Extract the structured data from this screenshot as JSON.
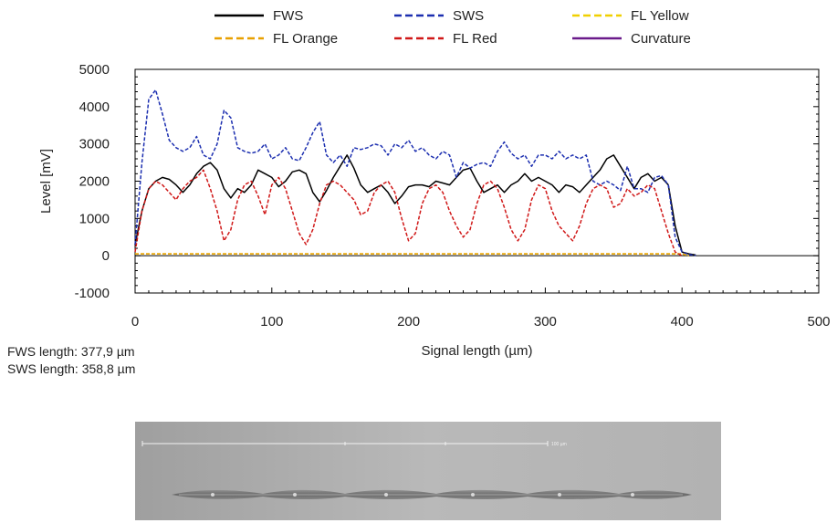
{
  "chart_data": {
    "type": "line",
    "xlabel": "Signal length (µm)",
    "ylabel": "Level [mV]",
    "xlim": [
      0,
      500
    ],
    "ylim": [
      -1000,
      5000
    ],
    "xticks": [
      0,
      100,
      200,
      300,
      400,
      500
    ],
    "yticks": [
      -1000,
      0,
      1000,
      2000,
      3000,
      4000,
      5000
    ],
    "legend_placement": "top",
    "series": [
      {
        "name": "FWS",
        "color": "#000000",
        "style": "solid",
        "width": 1.5,
        "x": [
          0,
          5,
          10,
          15,
          20,
          25,
          30,
          35,
          40,
          45,
          50,
          55,
          60,
          65,
          70,
          75,
          80,
          85,
          90,
          95,
          100,
          105,
          110,
          115,
          120,
          125,
          130,
          135,
          140,
          145,
          150,
          155,
          160,
          165,
          170,
          175,
          180,
          185,
          190,
          195,
          200,
          205,
          210,
          215,
          220,
          225,
          230,
          235,
          240,
          245,
          250,
          255,
          260,
          265,
          270,
          275,
          280,
          285,
          290,
          295,
          300,
          305,
          310,
          315,
          320,
          325,
          330,
          335,
          340,
          345,
          350,
          355,
          360,
          365,
          370,
          375,
          380,
          385,
          390,
          395,
          400,
          405,
          410
        ],
        "y": [
          300,
          1200,
          1800,
          2000,
          2100,
          2050,
          1900,
          1700,
          1900,
          2200,
          2400,
          2500,
          2300,
          1800,
          1550,
          1800,
          1700,
          1900,
          2300,
          2200,
          2100,
          1850,
          2000,
          2250,
          2300,
          2200,
          1700,
          1450,
          1750,
          2100,
          2400,
          2700,
          2350,
          1900,
          1700,
          1800,
          1900,
          1700,
          1400,
          1600,
          1850,
          1900,
          1900,
          1850,
          2000,
          1950,
          1900,
          2100,
          2300,
          2350,
          2000,
          1700,
          1800,
          1900,
          1700,
          1900,
          2000,
          2200,
          2000,
          2100,
          2000,
          1900,
          1700,
          1900,
          1850,
          1700,
          1900,
          2100,
          2300,
          2600,
          2700,
          2400,
          2100,
          1800,
          2100,
          2200,
          2000,
          2100,
          1900,
          800,
          100,
          50,
          20
        ]
      },
      {
        "name": "SWS",
        "color": "#1c2fb0",
        "style": "dashed",
        "width": 1.5,
        "x": [
          0,
          5,
          10,
          15,
          20,
          25,
          30,
          35,
          40,
          45,
          50,
          55,
          60,
          65,
          70,
          75,
          80,
          85,
          90,
          95,
          100,
          105,
          110,
          115,
          120,
          125,
          130,
          135,
          140,
          145,
          150,
          155,
          160,
          165,
          170,
          175,
          180,
          185,
          190,
          195,
          200,
          205,
          210,
          215,
          220,
          225,
          230,
          235,
          240,
          245,
          250,
          255,
          260,
          265,
          270,
          275,
          280,
          285,
          290,
          295,
          300,
          305,
          310,
          315,
          320,
          325,
          330,
          335,
          340,
          345,
          350,
          355,
          360,
          365,
          370,
          375,
          380,
          385,
          390,
          395,
          400,
          405,
          410
        ],
        "y": [
          300,
          2500,
          4200,
          4450,
          3800,
          3100,
          2900,
          2800,
          2900,
          3200,
          2700,
          2600,
          3000,
          3900,
          3700,
          2900,
          2800,
          2750,
          2800,
          3000,
          2600,
          2700,
          2900,
          2600,
          2550,
          2900,
          3300,
          3600,
          2700,
          2500,
          2700,
          2400,
          2900,
          2850,
          2900,
          3000,
          2950,
          2700,
          3000,
          2900,
          3100,
          2800,
          2900,
          2700,
          2600,
          2800,
          2700,
          2100,
          2500,
          2350,
          2450,
          2500,
          2400,
          2800,
          3050,
          2750,
          2600,
          2700,
          2400,
          2700,
          2700,
          2600,
          2800,
          2600,
          2700,
          2600,
          2700,
          2000,
          1900,
          2000,
          1900,
          1750,
          2400,
          1800,
          1800,
          1700,
          2100,
          2150,
          1900,
          500,
          100,
          30,
          10
        ]
      },
      {
        "name": "FL Yellow",
        "color": "#f0d000",
        "style": "dashed",
        "width": 1.5,
        "x": [
          0,
          400,
          405
        ],
        "y": [
          50,
          50,
          0
        ]
      },
      {
        "name": "FL Orange",
        "color": "#e8a000",
        "style": "dashed",
        "width": 1.5,
        "x": [
          0,
          400,
          405
        ],
        "y": [
          50,
          50,
          0
        ]
      },
      {
        "name": "FL Red",
        "color": "#d01818",
        "style": "dashed",
        "width": 1.5,
        "x": [
          0,
          5,
          10,
          15,
          20,
          25,
          30,
          35,
          40,
          45,
          50,
          55,
          60,
          65,
          70,
          75,
          80,
          85,
          90,
          95,
          100,
          105,
          110,
          115,
          120,
          125,
          130,
          135,
          140,
          145,
          150,
          155,
          160,
          165,
          170,
          175,
          180,
          185,
          190,
          195,
          200,
          205,
          210,
          215,
          220,
          225,
          230,
          235,
          240,
          245,
          250,
          255,
          260,
          265,
          270,
          275,
          280,
          285,
          290,
          295,
          300,
          305,
          310,
          315,
          320,
          325,
          330,
          335,
          340,
          345,
          350,
          355,
          360,
          365,
          370,
          375,
          380,
          385,
          390,
          395,
          400
        ],
        "y": [
          100,
          1200,
          1800,
          2000,
          1900,
          1700,
          1500,
          1800,
          2000,
          2100,
          2300,
          1800,
          1200,
          400,
          700,
          1500,
          1900,
          2000,
          1600,
          1100,
          1900,
          2100,
          1800,
          1200,
          600,
          300,
          700,
          1400,
          1900,
          2000,
          1900,
          1700,
          1500,
          1100,
          1200,
          1700,
          1900,
          2000,
          1700,
          1000,
          400,
          600,
          1400,
          1800,
          1900,
          1700,
          1200,
          800,
          500,
          700,
          1400,
          1900,
          2000,
          1800,
          1300,
          700,
          400,
          700,
          1500,
          1900,
          1800,
          1200,
          800,
          600,
          400,
          800,
          1400,
          1800,
          1900,
          1800,
          1300,
          1400,
          1800,
          1600,
          1700,
          1900,
          1800,
          1200,
          600,
          100,
          0
        ]
      },
      {
        "name": "Curvature",
        "color": "#6a1a8a",
        "style": "solid",
        "width": 1.5,
        "x": [],
        "y": []
      }
    ]
  },
  "info": {
    "fws_length": "FWS length: 377,9 µm",
    "sws_length": "SWS length: 358,8 µm"
  },
  "image_scale_label": "100 µm"
}
